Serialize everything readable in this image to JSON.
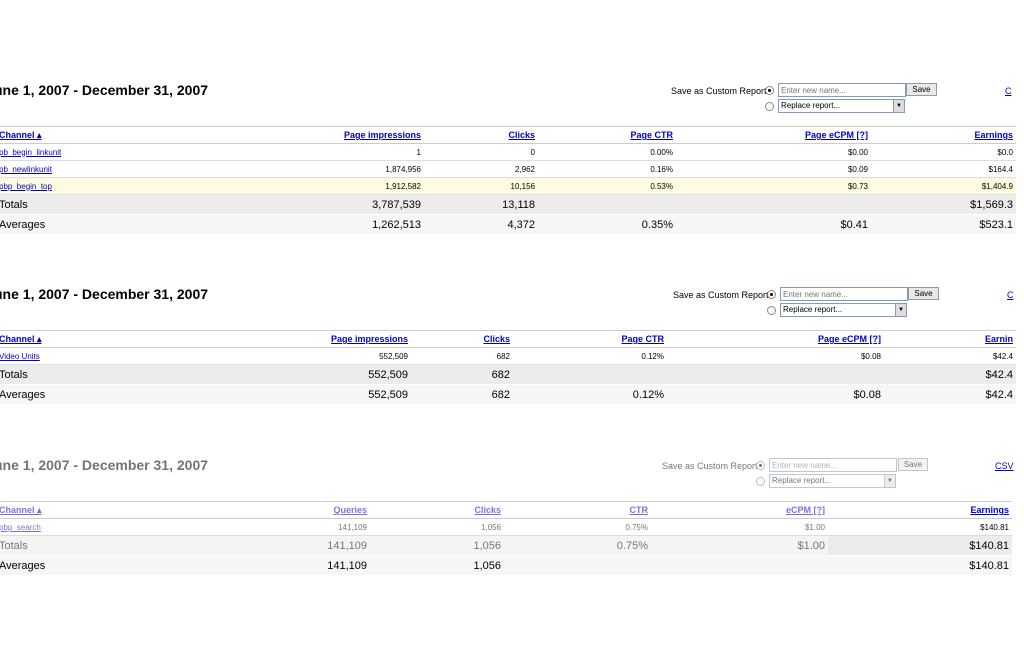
{
  "reports": [
    {
      "title": "une 1, 2007 - December 31, 2007",
      "save": {
        "label": "Save as Custom Report:",
        "placeholder": "Enter new name...",
        "button": "Save",
        "replace": "Replace report..."
      },
      "corner_link": "C",
      "columns": [
        "Channel ▴",
        "Page impressions",
        "Clicks",
        "Page CTR",
        "Page eCPM [?]",
        "Earnings"
      ],
      "rows": [
        [
          "pb_begin_linkunit",
          "1",
          "0",
          "0.00%",
          "$0.00",
          "$0.0"
        ],
        [
          "pb_newlinkunit",
          "1,874,956",
          "2,962",
          "0.16%",
          "$0.09",
          "$164.4"
        ],
        [
          "pbp_begin_top",
          "1,912,582",
          "10,156",
          "0.53%",
          "$0.73",
          "$1,404.9"
        ]
      ],
      "totals": [
        "Totals",
        "3,787,539",
        "13,118",
        "",
        "",
        "$1,569.3"
      ],
      "averages": [
        "Averages",
        "1,262,513",
        "4,372",
        "0.35%",
        "$0.41",
        "$523.1"
      ]
    },
    {
      "title": "une 1, 2007 - December 31, 2007",
      "save": {
        "label": "Save as Custom Report:",
        "placeholder": "Enter new name...",
        "button": "Save",
        "replace": "Replace report..."
      },
      "corner_link": "C",
      "columns": [
        "Channel ▴",
        "Page impressions",
        "Clicks",
        "Page CTR",
        "Page eCPM [?]",
        "Earnin"
      ],
      "rows": [
        [
          "Video Units",
          "552,509",
          "682",
          "0.12%",
          "$0.08",
          "$42.4"
        ]
      ],
      "totals": [
        "Totals",
        "552,509",
        "682",
        "",
        "",
        "$42.4"
      ],
      "averages": [
        "Averages",
        "552,509",
        "682",
        "0.12%",
        "$0.08",
        "$42.4"
      ]
    },
    {
      "title": "une 1, 2007 - December 31, 2007",
      "save": {
        "label": "Save as Custom Report:",
        "placeholder": "Enter new name...",
        "button": "Save",
        "replace": "Replace report..."
      },
      "corner_link": "CSV",
      "columns": [
        "Channel ▴",
        "Queries",
        "Clicks",
        "CTR",
        "eCPM [?]",
        "Earnings"
      ],
      "rows": [
        [
          "pbp_search",
          "141,109",
          "1,056",
          "0.75%",
          "$1.00",
          "$140.81"
        ]
      ],
      "totals": [
        "Totals",
        "141,109",
        "1,056",
        "0.75%",
        "$1.00",
        "$140.81"
      ],
      "averages": [
        "Averages",
        "141,109",
        "1,056",
        "",
        "",
        "$140.81"
      ]
    }
  ],
  "colors": {
    "link": "#0000cc",
    "highlight_row": "#fffbe0",
    "totals_bg": "#ececec"
  }
}
